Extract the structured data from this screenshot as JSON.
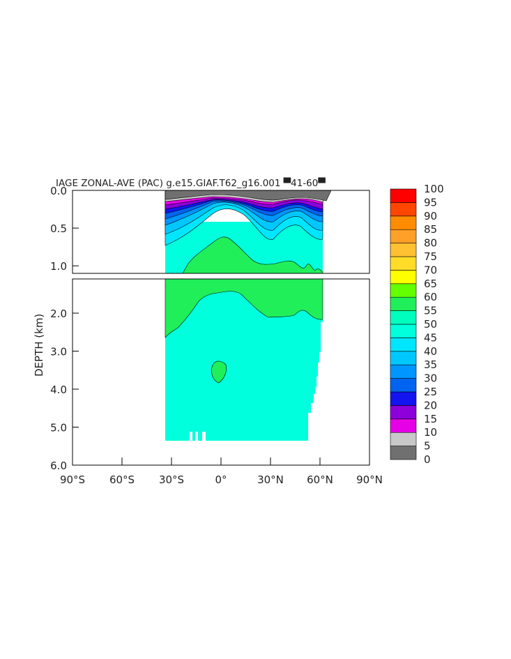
{
  "chart_data": {
    "type": "heatmap",
    "title": "IAGE ZONAL-AVE (PAC) g.e15.GIAF.T62_g16.001 ▀41-60▀",
    "title_parts": {
      "variable": "IAGE",
      "label": "ZONAL-AVE (PAC)",
      "case": "g.e15.GIAF.T62_g16.001",
      "years": "41-60"
    },
    "xlabel": "",
    "ylabel": "DEPTH (km)",
    "x_ticks": [
      "90°S",
      "60°S",
      "30°S",
      "0°",
      "30°N",
      "60°N",
      "90°N"
    ],
    "x_tick_values": [
      -90,
      -60,
      -30,
      0,
      30,
      60,
      90
    ],
    "y_ticks_top": [
      "0.0",
      "0.5",
      "1.0"
    ],
    "y_ticks_top_values": [
      0,
      0.5,
      1.0
    ],
    "y_ticks_bottom": [
      "2.0",
      "3.0",
      "4.0",
      "5.0",
      "6.0"
    ],
    "y_ticks_bottom_values": [
      2,
      3,
      4,
      5,
      6
    ],
    "panels": [
      {
        "name": "upper",
        "ylim": [
          0,
          1.1
        ]
      },
      {
        "name": "lower",
        "ylim": [
          1.1,
          6.0
        ]
      }
    ],
    "xlim": [
      -90,
      90
    ],
    "data_extent": {
      "lat": [
        -34,
        62
      ],
      "max_depth_km": 5.35
    },
    "colorbar": {
      "levels": [
        0,
        5,
        10,
        15,
        20,
        25,
        30,
        35,
        40,
        45,
        50,
        55,
        60,
        65,
        70,
        75,
        80,
        85,
        90,
        95,
        100
      ],
      "colors": [
        "#707070",
        "#c8c8c8",
        "#e600e6",
        "#8c00dc",
        "#1414f0",
        "#0064f0",
        "#0096ff",
        "#00c8ff",
        "#00e6ff",
        "#00ffdc",
        "#00ffbe",
        "#20ef5a",
        "#64ff00",
        "#ffff00",
        "#ffdc28",
        "#ffc032",
        "#ffa028",
        "#ff8c00",
        "#ff4600",
        "#ff0000",
        "#c80000"
      ]
    },
    "contour_levels_shown": [
      5,
      10,
      15,
      20,
      25,
      30,
      35,
      40,
      45,
      50
    ],
    "regions": [
      {
        "value_range": [
          50,
          55
        ],
        "description_level": 50,
        "core_lat": [
          -15,
          55
        ],
        "depth_km": [
          0.65,
          2.15
        ]
      },
      {
        "value_range": [
          50,
          55
        ],
        "description_level": 50,
        "center_lat": -1,
        "center_depth_km": 3.5
      }
    ],
    "grid": false,
    "legend": "colorbar-right"
  }
}
